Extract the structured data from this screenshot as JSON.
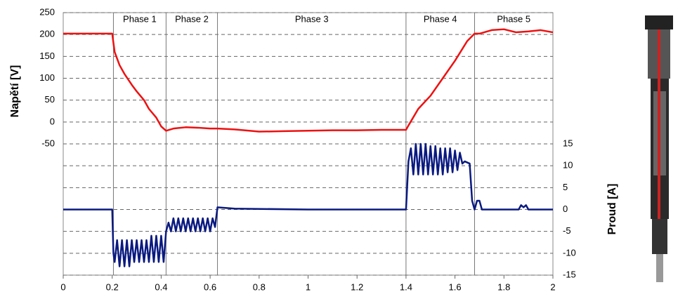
{
  "chart_data": {
    "type": "line",
    "y_label": "Napětí [V]",
    "y2_label": "Proud [A]",
    "xlim": [
      0,
      2
    ],
    "xticks": [
      0,
      0.2,
      0.4,
      0.6,
      0.8,
      1,
      1.2,
      1.4,
      1.6,
      1.8,
      2
    ],
    "ylim": [
      -350,
      250
    ],
    "yticks": [
      250,
      200,
      150,
      100,
      50,
      0,
      -50
    ],
    "y2lim": [
      -15,
      45
    ],
    "y2ticks": [
      15,
      10,
      5,
      0,
      -5,
      -10,
      -15
    ],
    "grid": true,
    "phases": [
      {
        "label": "Phase 1",
        "start": 0.205,
        "end": 0.42
      },
      {
        "label": "Phase 2",
        "start": 0.42,
        "end": 0.63
      },
      {
        "label": "Phase 3",
        "start": 0.63,
        "end": 1.4
      },
      {
        "label": "Phase 4",
        "start": 1.4,
        "end": 1.68
      },
      {
        "label": "Phase 5",
        "start": 1.68,
        "end": 2
      }
    ],
    "series": [
      {
        "color": "#ee1111",
        "axis": "y",
        "x": [
          0,
          0.2,
          0.21,
          0.23,
          0.25,
          0.28,
          0.3,
          0.33,
          0.35,
          0.38,
          0.4,
          0.42,
          0.45,
          0.5,
          0.55,
          0.6,
          0.63,
          0.7,
          0.8,
          0.9,
          1.0,
          1.1,
          1.2,
          1.3,
          1.4,
          1.41,
          1.45,
          1.5,
          1.55,
          1.6,
          1.65,
          1.68,
          1.7,
          1.75,
          1.8,
          1.85,
          1.9,
          1.95,
          2.0
        ],
        "values": [
          202,
          202,
          160,
          130,
          110,
          85,
          70,
          50,
          30,
          10,
          -10,
          -20,
          -15,
          -12,
          -13,
          -15,
          -15,
          -17,
          -22,
          -21,
          -20,
          -19,
          -19,
          -18,
          -18,
          -8,
          30,
          60,
          100,
          140,
          185,
          202,
          202,
          210,
          212,
          205,
          207,
          210,
          205
        ]
      },
      {
        "color": "#0a1a80",
        "axis": "y2",
        "x": [
          0,
          0.2,
          0.205,
          0.21,
          0.22,
          0.23,
          0.24,
          0.25,
          0.26,
          0.27,
          0.28,
          0.29,
          0.3,
          0.31,
          0.32,
          0.33,
          0.34,
          0.35,
          0.36,
          0.37,
          0.38,
          0.39,
          0.4,
          0.41,
          0.42,
          0.43,
          0.44,
          0.45,
          0.46,
          0.47,
          0.48,
          0.49,
          0.5,
          0.51,
          0.52,
          0.53,
          0.54,
          0.55,
          0.56,
          0.57,
          0.58,
          0.59,
          0.6,
          0.61,
          0.62,
          0.63,
          0.7,
          1.0,
          1.4,
          1.41,
          1.42,
          1.43,
          1.44,
          1.45,
          1.46,
          1.47,
          1.48,
          1.49,
          1.5,
          1.51,
          1.52,
          1.53,
          1.54,
          1.55,
          1.56,
          1.57,
          1.58,
          1.59,
          1.6,
          1.61,
          1.62,
          1.63,
          1.64,
          1.66,
          1.67,
          1.68,
          1.69,
          1.7,
          1.71,
          1.86,
          1.87,
          1.88,
          1.89,
          1.9,
          2.0
        ],
        "values": [
          0,
          0,
          -10,
          -12,
          -7,
          -13,
          -7,
          -13,
          -7,
          -13,
          -7,
          -12,
          -7,
          -12,
          -7,
          -12,
          -7,
          -12,
          -6,
          -12,
          -6,
          -12,
          -6,
          -12,
          -5,
          -3,
          -5,
          -2,
          -5,
          -2,
          -5,
          -2,
          -5,
          -2,
          -5,
          -2,
          -5,
          -2,
          -5,
          -2,
          -5,
          -2,
          -5,
          -2,
          -4,
          0.5,
          0.2,
          0,
          0,
          11,
          14,
          8,
          15,
          8,
          15,
          8,
          15,
          8,
          14.5,
          8,
          14.5,
          8,
          14,
          8,
          14,
          8.5,
          14,
          8.5,
          13.5,
          9,
          13,
          10.5,
          11,
          10.5,
          2,
          0,
          2,
          2,
          0,
          0,
          1,
          0.5,
          1,
          0,
          0
        ]
      }
    ]
  }
}
